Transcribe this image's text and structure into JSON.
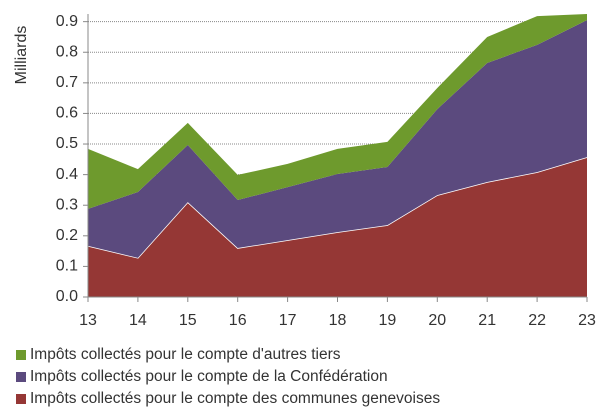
{
  "chart_data": {
    "type": "stacked_area",
    "y_label": "Milliards",
    "categories": [
      "13",
      "14",
      "15",
      "16",
      "17",
      "18",
      "19",
      "20",
      "21",
      "22",
      "23"
    ],
    "series": [
      {
        "name": "Impôts collectés pour le compte des communes genevoises",
        "color": "#953735",
        "values": [
          0.167,
          0.128,
          0.31,
          0.16,
          0.186,
          0.212,
          0.235,
          0.333,
          0.376,
          0.408,
          0.457
        ]
      },
      {
        "name": "Impôts collectés pour le compte de la Confédération",
        "color": "#5b4a7e",
        "values": [
          0.121,
          0.215,
          0.187,
          0.157,
          0.173,
          0.19,
          0.19,
          0.281,
          0.389,
          0.416,
          0.448
        ]
      },
      {
        "name": "Impôts collectés pour le compte d'autres tiers",
        "color": "#6e9a2d",
        "values": [
          0.196,
          0.075,
          0.072,
          0.082,
          0.076,
          0.082,
          0.082,
          0.069,
          0.085,
          0.094,
          0.02
        ]
      }
    ],
    "ylim": [
      0,
      0.925
    ],
    "yticks": [
      {
        "value": 0,
        "label": "0.0"
      },
      0.1,
      0.2,
      0.3,
      0.4,
      0.5,
      0.6,
      0.7,
      0.8,
      0.9
    ],
    "grid": true,
    "legend": "bottom"
  }
}
